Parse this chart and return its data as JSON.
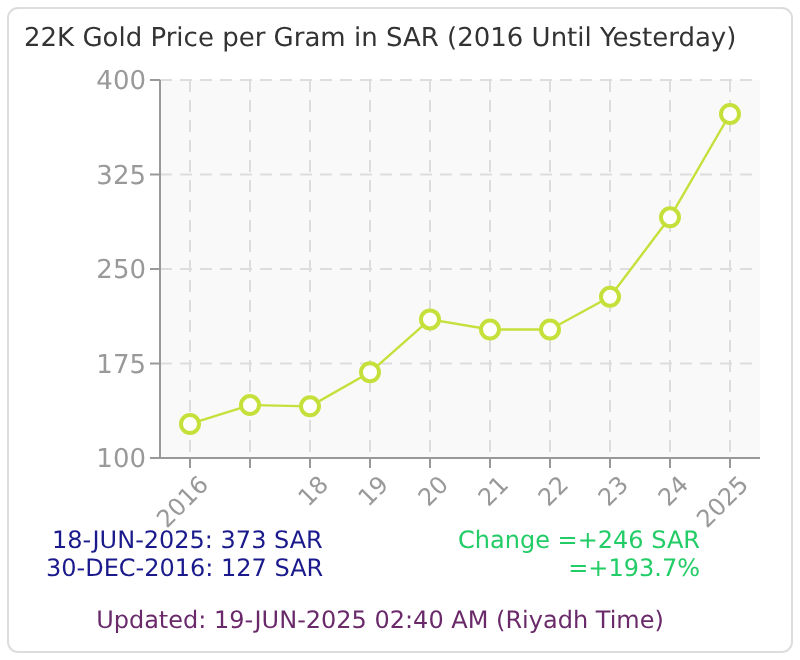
{
  "chart_data": {
    "type": "line",
    "title": "22K Gold Price per Gram in SAR (2016 Until Yesterday)",
    "categories": [
      "2016",
      null,
      "18",
      "19",
      "20",
      "21",
      "22",
      "23",
      "24",
      "2025"
    ],
    "series": [
      {
        "color": "#c5e03a",
        "values": [
          127,
          142,
          141,
          168,
          210,
          202,
          202,
          228,
          291,
          373
        ]
      }
    ],
    "ylim": [
      100,
      400
    ],
    "yticks": [
      100,
      175,
      250,
      325,
      400
    ],
    "grid": true,
    "marker": "circle",
    "line_style": "solid",
    "annotations": [
      "18-JUN-2025: 373 SAR",
      "30-DEC-2016: 127 SAR",
      "Change =+246 SAR",
      "=+193.7%",
      "Updated: 19-JUN-2025 02:40 AM (Riyadh Time)"
    ]
  }
}
